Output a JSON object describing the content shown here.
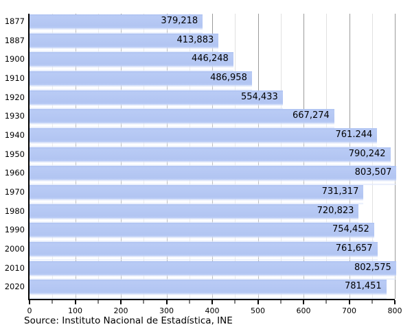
{
  "chart_data": {
    "type": "bar",
    "orientation": "horizontal",
    "title": "",
    "xlabel": "",
    "ylabel": "",
    "legend": "none",
    "grid": "on",
    "categories": [
      "1877",
      "1887",
      "1900",
      "1910",
      "1920",
      "1930",
      "1940",
      "1950",
      "1960",
      "1970",
      "1980",
      "1990",
      "2000",
      "2010",
      "2020"
    ],
    "values": [
      379218,
      413883,
      446248,
      486958,
      554433,
      667274,
      761244,
      790242,
      803507,
      731317,
      720823,
      754452,
      761657,
      802575,
      781451
    ],
    "value_labels": [
      "379,218",
      "413,883",
      "446,248",
      "486,958",
      "554,433",
      "667,274",
      "761.244",
      "790,242",
      "803,507",
      "731,317",
      "720,823",
      "754,452",
      "761,657",
      "802,575",
      "781,451"
    ],
    "x_axis": {
      "min": 0,
      "max": 800,
      "major_tick_step": 100,
      "minor_tick_step": 50,
      "tick_labels": [
        "0",
        "100",
        "200",
        "300",
        "400",
        "500",
        "600",
        "700",
        "800"
      ],
      "values_scale": "thousands"
    }
  },
  "source": {
    "text": "Source: Instituto Nacional de Estadística, INE"
  },
  "colors": {
    "bar_fill": "#b3c6f2",
    "bar_fill_light": "#c7d5f7",
    "major_gridline": "#9a9a9a",
    "minor_gridline": "#e0e0e0",
    "axis": "#000000",
    "text": "#000000",
    "background": "#ffffff"
  }
}
